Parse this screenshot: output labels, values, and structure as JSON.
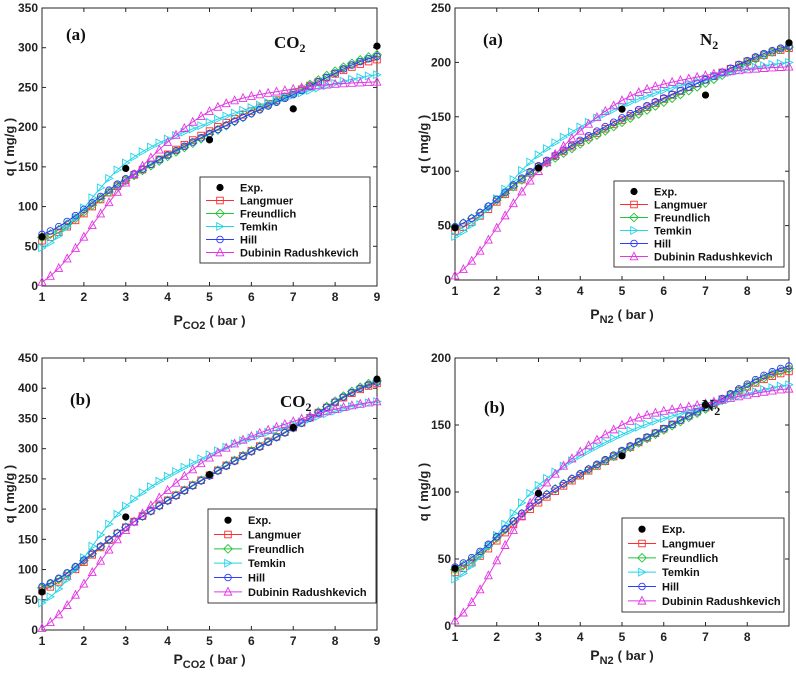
{
  "chart_data": [
    {
      "type": "scatter+line",
      "panel_label": "(a)",
      "gas_label": {
        "base": "CO",
        "sub": "2"
      },
      "xlabel": {
        "base": "P",
        "sub": "CO2",
        "unit": "( bar )"
      },
      "ylabel": "q ( mg/g )",
      "xlim": [
        1,
        9
      ],
      "ylim": [
        0,
        350
      ],
      "xticks": [
        "1",
        "2",
        "3",
        "4",
        "5",
        "6",
        "7",
        "8",
        "9"
      ],
      "yticks": [
        "0",
        "50",
        "100",
        "150",
        "200",
        "250",
        "300",
        "350"
      ],
      "legend": [
        "Exp.",
        "Langmuer",
        "Freundlich",
        "Temkin",
        "Hill",
        "Dubinin Radushkevich"
      ],
      "exp_points": {
        "x": [
          1,
          3,
          5,
          7,
          9
        ],
        "y": [
          62,
          148,
          184,
          223,
          302
        ]
      },
      "series": [
        {
          "name": "Langmuer",
          "color": "#ff2d2d",
          "marker": "square",
          "x": [
            1,
            3,
            5,
            7,
            9
          ],
          "y": [
            57,
            133,
            195,
            243,
            285
          ]
        },
        {
          "name": "Freundlich",
          "color": "#22c43a",
          "marker": "diamond",
          "x": [
            1,
            3,
            5,
            7,
            9
          ],
          "y": [
            61,
            133,
            191,
            243,
            291
          ]
        },
        {
          "name": "Temkin",
          "color": "#22d5e8",
          "marker": "triangle-right",
          "x": [
            1,
            3,
            5,
            7,
            9
          ],
          "y": [
            48,
            155,
            206,
            240,
            266
          ]
        },
        {
          "name": "Hill",
          "color": "#2d3dff",
          "marker": "circle",
          "x": [
            1,
            3,
            5,
            7,
            9
          ],
          "y": [
            65,
            135,
            192,
            241,
            289
          ]
        },
        {
          "name": "Dubinin Radushkevich",
          "color": "#e535e5",
          "marker": "triangle-up",
          "x": [
            1,
            3,
            5,
            7,
            9
          ],
          "y": [
            5,
            130,
            220,
            248,
            257
          ]
        }
      ]
    },
    {
      "type": "scatter+line",
      "panel_label": "(a)",
      "gas_label": {
        "base": "N",
        "sub": "2"
      },
      "xlabel": {
        "base": "P",
        "sub": "N2",
        "unit": "( bar )"
      },
      "ylabel": "q ( mg/g )",
      "xlim": [
        1,
        9
      ],
      "ylim": [
        0,
        250
      ],
      "xticks": [
        "1",
        "2",
        "3",
        "4",
        "5",
        "6",
        "7",
        "8",
        "9"
      ],
      "yticks": [
        "0",
        "50",
        "100",
        "150",
        "200",
        "250"
      ],
      "legend": [
        "Exp.",
        "Langmuer",
        "Freundlich",
        "Temkin",
        "Hill",
        "Dubinin Radushkevich"
      ],
      "exp_points": {
        "x": [
          1,
          3,
          5,
          7,
          9
        ],
        "y": [
          48,
          103,
          157,
          170,
          218
        ]
      },
      "series": [
        {
          "name": "Langmuer",
          "color": "#ff2d2d",
          "marker": "square",
          "x": [
            1,
            3,
            5,
            7,
            9
          ],
          "y": [
            45,
            104,
            147,
            184,
            213
          ]
        },
        {
          "name": "Freundlich",
          "color": "#22c43a",
          "marker": "diamond",
          "x": [
            1,
            3,
            5,
            7,
            9
          ],
          "y": [
            49,
            103,
            145,
            181,
            214
          ]
        },
        {
          "name": "Temkin",
          "color": "#22d5e8",
          "marker": "triangle-right",
          "x": [
            1,
            3,
            5,
            7,
            9
          ],
          "y": [
            40,
            115,
            160,
            185,
            200
          ]
        },
        {
          "name": "Hill",
          "color": "#2d3dff",
          "marker": "circle",
          "x": [
            1,
            3,
            5,
            7,
            9
          ],
          "y": [
            49,
            105,
            149,
            184,
            215
          ]
        },
        {
          "name": "Dubinin Radushkevich",
          "color": "#e535e5",
          "marker": "triangle-up",
          "x": [
            1,
            3,
            5,
            7,
            9
          ],
          "y": [
            4,
            100,
            165,
            188,
            196
          ]
        }
      ]
    },
    {
      "type": "scatter+line",
      "panel_label": "(b)",
      "gas_label": {
        "base": "CO",
        "sub": "2"
      },
      "xlabel": {
        "base": "P",
        "sub": "CO2",
        "unit": "( bar )"
      },
      "ylabel": "q ( mg/g )",
      "xlim": [
        1,
        9
      ],
      "ylim": [
        0,
        450
      ],
      "xticks": [
        "1",
        "2",
        "3",
        "4",
        "5",
        "6",
        "7",
        "8",
        "9"
      ],
      "yticks": [
        "0",
        "50",
        "100",
        "150",
        "200",
        "250",
        "300",
        "350",
        "400",
        "450"
      ],
      "legend": [
        "Exp.",
        "Langmuer",
        "Freundlich",
        "Temkin",
        "Hill",
        "Dubinin Radushkevich"
      ],
      "exp_points": {
        "x": [
          1,
          3,
          5,
          7,
          9
        ],
        "y": [
          63,
          187,
          257,
          335,
          415
        ]
      },
      "series": [
        {
          "name": "Langmuer",
          "color": "#ff2d2d",
          "marker": "square",
          "x": [
            1,
            3,
            5,
            7,
            9
          ],
          "y": [
            65,
            170,
            256,
            335,
            408
          ]
        },
        {
          "name": "Freundlich",
          "color": "#22c43a",
          "marker": "diamond",
          "x": [
            1,
            3,
            5,
            7,
            9
          ],
          "y": [
            70,
            170,
            256,
            335,
            412
          ]
        },
        {
          "name": "Temkin",
          "color": "#22d5e8",
          "marker": "triangle-right",
          "x": [
            1,
            3,
            5,
            7,
            9
          ],
          "y": [
            45,
            205,
            290,
            340,
            378
          ]
        },
        {
          "name": "Hill",
          "color": "#2d3dff",
          "marker": "circle",
          "x": [
            1,
            3,
            5,
            7,
            9
          ],
          "y": [
            72,
            170,
            255,
            334,
            410
          ]
        },
        {
          "name": "Dubinin Radushkevich",
          "color": "#e535e5",
          "marker": "triangle-up",
          "x": [
            1,
            3,
            5,
            7,
            9
          ],
          "y": [
            3,
            165,
            285,
            345,
            378
          ]
        }
      ]
    },
    {
      "type": "scatter+line",
      "panel_label": "(b)",
      "gas_label": {
        "base": "N",
        "sub": "2"
      },
      "xlabel": {
        "base": "P",
        "sub": "N2",
        "unit": "( bar )"
      },
      "ylabel": "q ( mg/g )",
      "xlim": [
        1,
        9
      ],
      "ylim": [
        0,
        200
      ],
      "xticks": [
        "1",
        "2",
        "3",
        "4",
        "5",
        "6",
        "7",
        "8"
      ],
      "yticks": [
        "0",
        "50",
        "100",
        "150",
        "200"
      ],
      "legend": [
        "Exp.",
        "Langmuer",
        "Freundlich",
        "Temkin",
        "Hill",
        "Dubinin Radushkevich"
      ],
      "exp_points": {
        "x": [
          1,
          3,
          5,
          7
        ],
        "y": [
          43,
          99,
          127,
          165
        ]
      },
      "series": [
        {
          "name": "Langmuer",
          "color": "#ff2d2d",
          "marker": "square",
          "x": [
            1,
            3,
            5,
            7,
            9
          ],
          "y": [
            40,
            92,
            130,
            163,
            190
          ]
        },
        {
          "name": "Freundlich",
          "color": "#22c43a",
          "marker": "diamond",
          "x": [
            1,
            3,
            5,
            7,
            9
          ],
          "y": [
            42,
            94,
            130,
            162,
            192
          ]
        },
        {
          "name": "Temkin",
          "color": "#22d5e8",
          "marker": "triangle-right",
          "x": [
            1,
            3,
            5,
            7,
            9
          ],
          "y": [
            35,
            105,
            143,
            164,
            180
          ]
        },
        {
          "name": "Hill",
          "color": "#2d3dff",
          "marker": "circle",
          "x": [
            1,
            3,
            5,
            7,
            9
          ],
          "y": [
            44,
            94,
            131,
            163,
            194
          ]
        },
        {
          "name": "Dubinin Radushkevich",
          "color": "#e535e5",
          "marker": "triangle-up",
          "x": [
            1,
            3,
            5,
            7,
            9
          ],
          "y": [
            4,
            100,
            150,
            166,
            177
          ]
        }
      ]
    }
  ]
}
